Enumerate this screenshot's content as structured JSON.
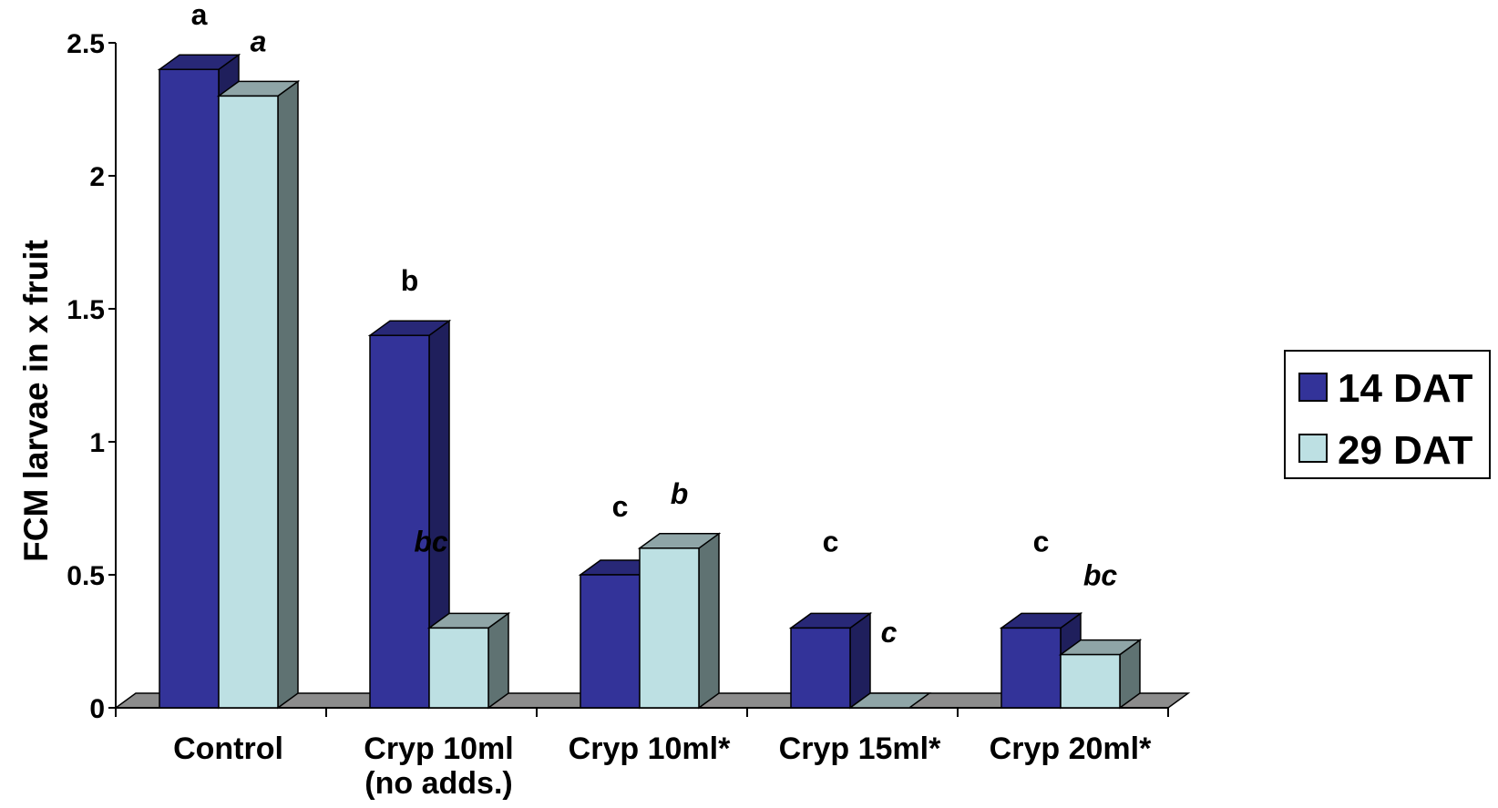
{
  "chart_data": {
    "type": "bar",
    "style": "3d-clustered-column",
    "title": "",
    "xlabel": "",
    "ylabel": "FCM larvae in x fruit",
    "ylim": [
      0,
      2.5
    ],
    "yticks": [
      "0",
      "0.5",
      "1",
      "1.5",
      "2",
      "2.5"
    ],
    "categories": [
      [
        "Control"
      ],
      [
        "Cryp 10ml",
        "(no adds.)"
      ],
      [
        "Cryp 10ml*"
      ],
      [
        "Cryp 15ml*"
      ],
      [
        "Cryp 20ml*"
      ]
    ],
    "series": [
      {
        "name": "14 DAT",
        "values": [
          2.4,
          1.4,
          0.5,
          0.3,
          0.3
        ],
        "significance": [
          "a",
          "b",
          "c",
          "c",
          "c"
        ],
        "italic": false,
        "color": "#333399",
        "side_color": "#1f1f5c",
        "top_color": "#282877"
      },
      {
        "name": "29 DAT",
        "values": [
          2.3,
          0.3,
          0.6,
          0.0,
          0.2
        ],
        "significance": [
          "a",
          "bc",
          "b",
          "c",
          "bc"
        ],
        "italic": true,
        "color": "#bde0e3",
        "side_color": "#5f7272",
        "top_color": "#8fa5a7"
      }
    ],
    "floor_color": "#8c8c8c",
    "grid": false,
    "legend": {
      "position": "right",
      "entries": [
        "14 DAT",
        "29 DAT"
      ]
    }
  }
}
